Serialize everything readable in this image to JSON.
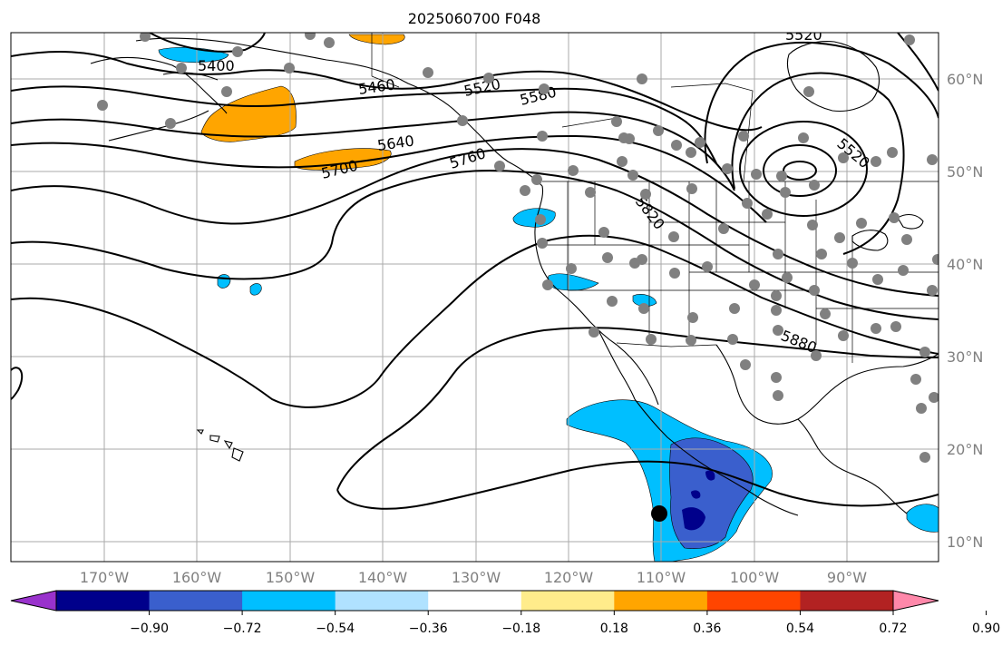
{
  "title": "2025060700 F048",
  "lat_labels": [
    "60°N",
    "50°N",
    "40°N",
    "30°N",
    "20°N",
    "10°N"
  ],
  "lon_labels": [
    "170°W",
    "160°W",
    "150°W",
    "140°W",
    "130°W",
    "120°W",
    "110°W",
    "100°W",
    "90°W"
  ],
  "contour_labels": [
    "5400",
    "5460",
    "5520",
    "5580",
    "5640",
    "5700",
    "5760",
    "5820",
    "5520",
    "5880",
    "5520"
  ],
  "colorbar": {
    "colors": [
      "#9932cc",
      "#00008b",
      "#3a5fcd",
      "#00bfff",
      "#b0e2ff",
      "#ffffff",
      "#ffec8b",
      "#ffa500",
      "#ff4500",
      "#b22222",
      "#ff88aa"
    ],
    "tick_labels": [
      "−0.90",
      "−0.72",
      "−0.54",
      "−0.36",
      "−0.18",
      "0.18",
      "0.36",
      "0.54",
      "0.72",
      "0.90"
    ]
  },
  "colors": {
    "stations": "#808080",
    "contour": "#000000",
    "grid": "#aaaaaa",
    "coast": "#000000"
  }
}
